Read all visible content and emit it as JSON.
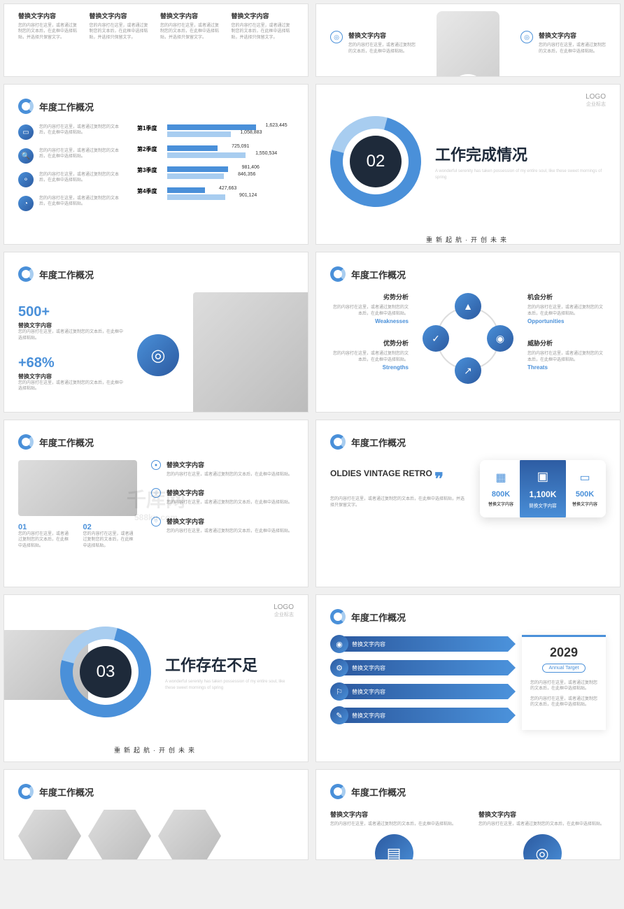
{
  "common": {
    "section_title": "年度工作概况",
    "logo": "LOGO",
    "logo_sub": "企业标志",
    "item_title": "替换文字内容",
    "body_text": "您的内容打在这里，或者通过复制您的文本后，在此框中选择粘贴，并选择只保留文字。",
    "body_text_short": "您的内容打在这里，或者通过复制您的文本后，在此框中选择粘贴。",
    "tagline": "重新起航·开创未来",
    "sub_en": "A wonderful serenity has taken possession of my entire soul, like these sweet mornings of spring"
  },
  "watermark": {
    "main": "千库网",
    "sub": "588ku.com"
  },
  "slide3": {
    "rows": [
      {
        "label": "第1季度",
        "bars": [
          {
            "w": 70,
            "v": "1,623,445"
          },
          {
            "w": 50,
            "v": "1,058,883"
          }
        ]
      },
      {
        "label": "第2季度",
        "bars": [
          {
            "w": 40,
            "v": "725,091"
          },
          {
            "w": 62,
            "v": "1,550,534"
          }
        ]
      },
      {
        "label": "第3季度",
        "bars": [
          {
            "w": 48,
            "v": "981,406"
          },
          {
            "w": 45,
            "v": "846,356"
          }
        ]
      },
      {
        "label": "第4季度",
        "bars": [
          {
            "w": 30,
            "v": "427,663"
          },
          {
            "w": 46,
            "v": "901,124"
          }
        ]
      }
    ]
  },
  "slide4": {
    "num": "02",
    "title": "工作完成情况"
  },
  "slide5": {
    "stat1": "500+",
    "stat2": "+68%"
  },
  "slide6": {
    "items": [
      {
        "title": "劣势分析",
        "tag": "Weaknesses"
      },
      {
        "title": "优势分析",
        "tag": "Strengths"
      },
      {
        "title": "机会分析",
        "tag": "Opportunities"
      },
      {
        "title": "威胁分析",
        "tag": "Threats"
      }
    ]
  },
  "slide7": {
    "n1": "01",
    "n2": "02"
  },
  "slide8": {
    "title": "OLDIES VINTAGE RETRO",
    "cards": [
      {
        "num": "800K"
      },
      {
        "num": "1,100K"
      },
      {
        "num": "500K"
      }
    ]
  },
  "slide9": {
    "num": "03",
    "title": "工作存在不足"
  },
  "slide10": {
    "year": "2029",
    "badge": "Annual Target"
  }
}
